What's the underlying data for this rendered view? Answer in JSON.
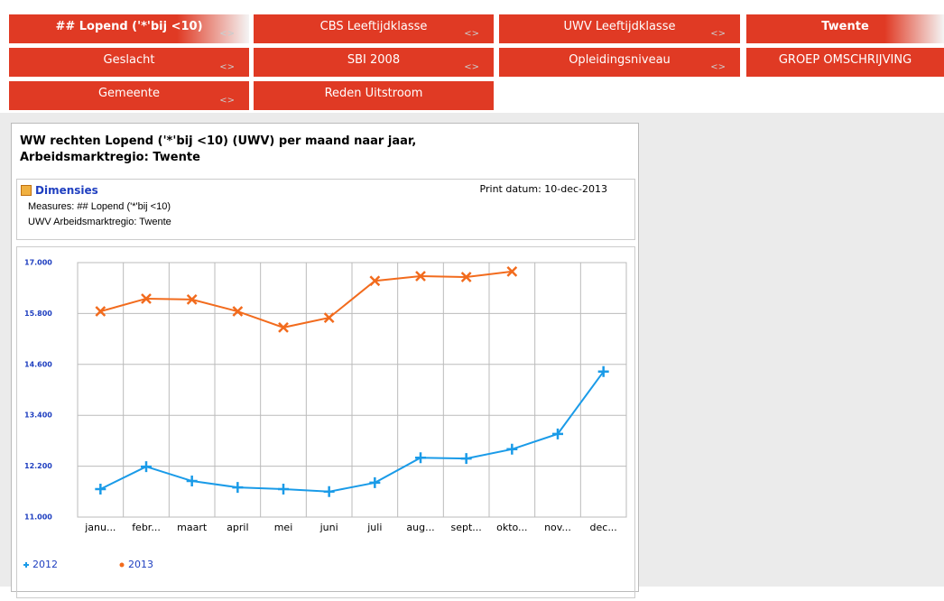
{
  "tabs": [
    "## Lopend ('*'bij <10)",
    "CBS Leeftijdklasse",
    "UWV Leeftijdklasse",
    "Twente",
    "Geslacht",
    "SBI 2008",
    "Opleidingsniveau",
    "GROEP OMSCHRIJVING",
    "Gemeente",
    "Reden Uitstroom"
  ],
  "panel": {
    "title": [
      "WW rechten Lopend ('*'bij <10) (UWV) per maand naar jaar,",
      "Arbeidsmarktregio: Twente"
    ],
    "dimensions": {
      "heading": "Dimensies",
      "print_date": "Print datum: 10-dec-2013",
      "lines": [
        "Measures: ## Lopend ('*'bij <10)",
        "UWV Arbeidsmarktregio: Twente"
      ]
    }
  },
  "chart_data": {
    "type": "line",
    "categories": [
      "janu...",
      "febr...",
      "maart",
      "april",
      "mei",
      "juni",
      "juli",
      "aug...",
      "sept...",
      "okto...",
      "nov...",
      "dec..."
    ],
    "series": [
      {
        "name": "2012",
        "color": "#1a9be8",
        "marker": "plus",
        "values": [
          11660,
          12190,
          11850,
          11700,
          11660,
          11600,
          11810,
          12400,
          12380,
          12600,
          12960,
          14430
        ]
      },
      {
        "name": "2013",
        "color": "#f26b1d",
        "marker": "cross",
        "values": [
          15850,
          16150,
          16130,
          15850,
          15470,
          15700,
          16570,
          16680,
          16660,
          16790,
          null,
          null
        ]
      }
    ],
    "ylim": [
      11000,
      17000
    ],
    "yticks": [
      {
        "value": 11000,
        "label": "11.000"
      },
      {
        "value": 12200,
        "label": "12.200"
      },
      {
        "value": 13400,
        "label": "13.400"
      },
      {
        "value": 14600,
        "label": "14.600"
      },
      {
        "value": 15800,
        "label": "15.800"
      },
      {
        "value": 17000,
        "label": "17.000"
      }
    ],
    "grid": true
  }
}
